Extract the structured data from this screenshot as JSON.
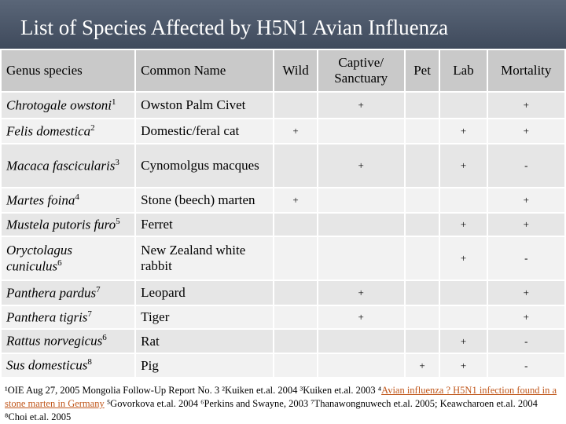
{
  "header": {
    "title": "List of Species Affected by H5N1 Avian Influenza"
  },
  "table": {
    "columns": [
      "Genus species",
      "Common Name",
      "Wild",
      "Captive/ Sanctuary",
      "Pet",
      "Lab",
      "Mortality"
    ],
    "rows": [
      {
        "species": "Chrotogale owstoni",
        "note": "1",
        "cells": [
          "Owston Palm Civet",
          null,
          "+",
          null,
          null,
          "+"
        ]
      },
      {
        "species": "Felis domestica",
        "note": "2",
        "cells": [
          "Domestic/feral cat",
          "+",
          null,
          null,
          "+",
          "+"
        ]
      },
      {
        "species": "Macaca fascicularis",
        "note": "3",
        "cells": [
          "Cynomolgus macques",
          null,
          "+",
          null,
          "+",
          "-"
        ]
      },
      {
        "species": "Martes foina",
        "note": "4",
        "cells": [
          "Stone (beech) marten",
          "+",
          null,
          null,
          null,
          "+"
        ]
      },
      {
        "species": "Mustela putoris furo",
        "note": "5",
        "cells": [
          "Ferret",
          null,
          null,
          null,
          "+",
          "+"
        ]
      },
      {
        "species": "Oryctolagus cuniculus",
        "note": "6",
        "cells": [
          "New Zealand white rabbit",
          null,
          null,
          null,
          "+",
          "-"
        ]
      },
      {
        "species": "Panthera pardus",
        "note": "7",
        "cells": [
          "Leopard",
          null,
          "+",
          null,
          null,
          "+"
        ]
      },
      {
        "species": "Panthera tigris",
        "note": "7",
        "cells": [
          "Tiger",
          null,
          "+",
          null,
          null,
          "+"
        ]
      },
      {
        "species": "Rattus norvegicus",
        "note": "6",
        "cells": [
          "Rat",
          null,
          null,
          null,
          "+",
          "-"
        ]
      },
      {
        "species": "Sus domesticus",
        "note": "8",
        "cells": [
          "Pig",
          null,
          null,
          "+",
          "+",
          "-"
        ]
      }
    ]
  },
  "footnote": [
    "¹OIE Aug 27, 2005 Mongolia Follow-Up Report No. 3 ²Kuiken et.al. 2004 ³Kuiken et.al. 2003 ⁴",
    "Avian influenza ? H5N1 infection found in a stone marten in Germany",
    "⁵Govorkova et.al. 2004 ⁶Perkins and Swayne, 2003 ⁷Thanawongnuwech et.al. 2005; Keawcharoen et.al. 2004 ⁸Choi et.al. 2005"
  ]
}
